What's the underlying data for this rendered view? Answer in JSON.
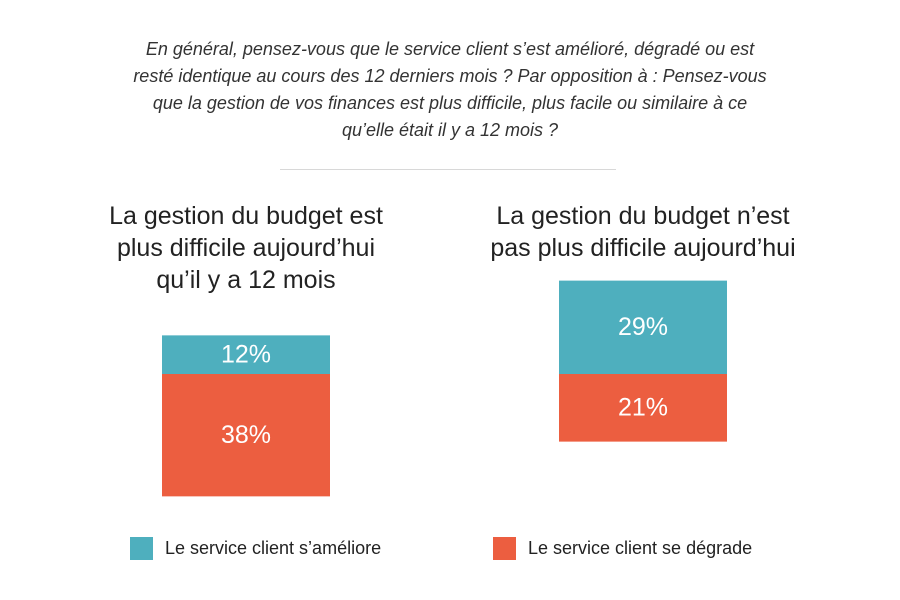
{
  "question_lines": [
    "En général, pensez-vous que le service client s’est amélioré, dégradé ou est",
    "resté identique au cours des 12 derniers mois ? Par opposition à : Pensez-vous",
    "que la gestion de vos finances est plus difficile, plus facile ou similaire à ce",
    "qu’elle était il y a 12 mois ?"
  ],
  "chart_data": {
    "type": "bar",
    "stacked": "diverging",
    "categories": [
      "La gestion du budget est plus difficile aujourd’hui qu’il y a 12 mois",
      "La gestion du budget n’est pas plus difficile aujourd’hui"
    ],
    "category_lines": [
      [
        "La gestion du budget est",
        "plus difficile aujourd’hui",
        "qu’il y a 12 mois"
      ],
      [
        "La gestion du budget n’est",
        "pas plus difficile aujourd’hui"
      ]
    ],
    "series": [
      {
        "name": "Le service client s’améliore",
        "values": [
          12,
          29
        ],
        "labels": [
          "12%",
          "29%"
        ],
        "color": "#4eafbe",
        "direction": "up"
      },
      {
        "name": "Le service client se dégrade",
        "values": [
          38,
          21
        ],
        "labels": [
          "38%",
          "21%"
        ],
        "color": "#ec5e40",
        "direction": "down"
      }
    ],
    "unit": "%",
    "legend_position": "bottom",
    "grid": false
  }
}
